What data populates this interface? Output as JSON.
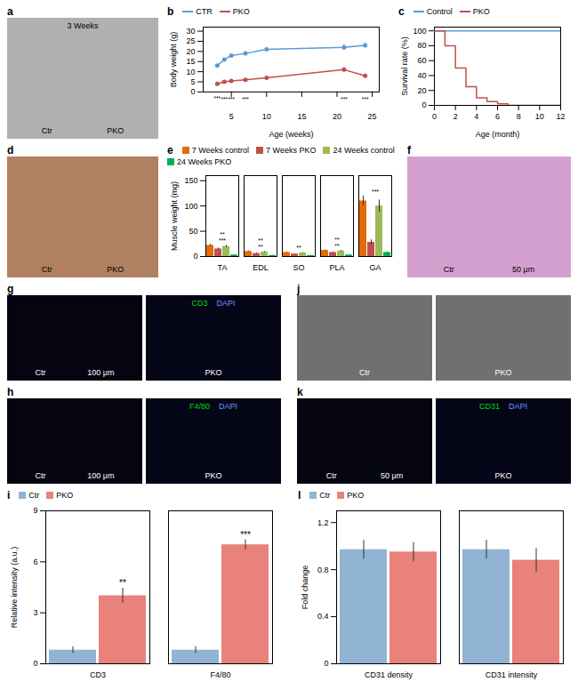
{
  "chart_data": [
    {
      "type": "image",
      "title": "a",
      "color": "#b0b0b0",
      "subtitle": "3 Weeks",
      "annotations": [
        "Ctr",
        "PKO"
      ]
    },
    {
      "type": "line",
      "title": "b",
      "xlabel": "Age (weeks)",
      "ylabel": "Body weight (g)",
      "x": [
        3,
        4,
        5,
        7,
        10,
        21,
        24
      ],
      "series": [
        {
          "name": "CTR",
          "color": "#5b9bd5",
          "marker": "circle",
          "values": [
            13,
            16,
            18,
            19,
            21,
            22,
            23
          ],
          "errors": [
            0.5,
            0.5,
            0.5,
            0.8,
            1.0,
            1.5,
            1.2
          ]
        },
        {
          "name": "PKO",
          "color": "#c0504d",
          "marker": "circle",
          "values": [
            4,
            5,
            5.5,
            6,
            7,
            11,
            8
          ],
          "errors": [
            0.3,
            0.3,
            0.4,
            0.5,
            0.6,
            1.0,
            0.8
          ]
        }
      ],
      "xlim": [
        1,
        26
      ],
      "ylim": [
        0,
        32
      ],
      "xticks": [
        5,
        10,
        15,
        20,
        25
      ],
      "yticks": [
        0,
        5,
        10,
        15,
        20,
        25,
        30
      ],
      "annotations": [
        {
          "x": 3,
          "y": -2.0,
          "text": "***"
        },
        {
          "x": 4,
          "y": -2.8,
          "text": "***"
        },
        {
          "x": 5,
          "y": -2.8,
          "text": "***"
        },
        {
          "x": 7,
          "y": -2.8,
          "text": "***"
        },
        {
          "x": 21,
          "y": -2.8,
          "text": "***"
        },
        {
          "x": 24,
          "y": -2.8,
          "text": "***"
        }
      ]
    },
    {
      "type": "line",
      "title": "c",
      "xlabel": "Age (month)",
      "ylabel": "Survival rate (%)",
      "series": [
        {
          "name": "Control",
          "color": "#5b9bd5",
          "x": [
            0,
            12
          ],
          "values": [
            100,
            100
          ]
        },
        {
          "name": "PKO",
          "color": "#c0504d",
          "line_style": "steps",
          "x": [
            0,
            0,
            1,
            1,
            2,
            2,
            3,
            3,
            4,
            4,
            5,
            5,
            6,
            6,
            7,
            7,
            12
          ],
          "values": [
            100,
            100,
            100,
            80,
            80,
            50,
            50,
            25,
            25,
            10,
            10,
            5,
            5,
            2,
            2,
            0,
            0
          ]
        }
      ],
      "xlim": [
        0,
        12
      ],
      "ylim": [
        0,
        105
      ],
      "xticks": [
        0,
        2,
        4,
        6,
        8,
        10,
        12
      ],
      "yticks": [
        0,
        20,
        40,
        60,
        80,
        100
      ]
    },
    {
      "type": "image",
      "title": "d",
      "color": "#b08060",
      "annotations": [
        "Ctr",
        "PKO"
      ]
    },
    {
      "type": "bar",
      "title": "e",
      "ylabel": "Muscle weight (mg)",
      "categories": [
        "TA",
        "EDL",
        "SO",
        "PLA",
        "GA"
      ],
      "series": [
        {
          "name": "7 Weeks control",
          "color": "#e36c09",
          "values": [
            22,
            10,
            8,
            12,
            110
          ],
          "errors": [
            2,
            1,
            0.8,
            1.2,
            10
          ]
        },
        {
          "name": "7 Weeks PKO",
          "color": "#c0504d",
          "values": [
            15,
            6,
            5,
            8,
            28
          ],
          "errors": [
            2,
            1,
            0.5,
            1,
            5
          ]
        },
        {
          "name": "24 Weeks control",
          "color": "#9bbb59",
          "values": [
            20,
            9,
            7,
            11,
            100
          ],
          "errors": [
            2,
            1,
            0.8,
            1,
            12
          ]
        },
        {
          "name": "24 Weeks PKO",
          "color": "#00b050",
          "values": [
            3,
            2,
            2,
            3,
            8
          ],
          "errors": [
            0.5,
            0.3,
            0.3,
            0.4,
            1
          ]
        }
      ],
      "ylim": [
        0,
        160
      ],
      "yticks": [
        0,
        50,
        100,
        150
      ],
      "annotations": [
        "**\n***",
        "**\n**",
        "**",
        "**\n**",
        "***"
      ]
    },
    {
      "type": "image",
      "title": "f",
      "color": "#d4a0d0",
      "annotations": [
        "Ctr",
        "50 μm"
      ]
    },
    {
      "type": "image",
      "title": "g",
      "color": "#050512",
      "annotations": [
        "Ctr",
        "100 μm"
      ]
    },
    {
      "type": "image",
      "color": "#050518",
      "annotations": [
        "PKO"
      ],
      "series": [
        {
          "name": "CD3",
          "color": "#00dd00"
        },
        {
          "name": "DAPI",
          "color": "#6699ff"
        }
      ]
    },
    {
      "type": "image",
      "title": "j",
      "color": "#707070",
      "annotations": [
        "Ctr"
      ]
    },
    {
      "type": "image",
      "color": "#707070",
      "annotations": [
        "PKO"
      ]
    },
    {
      "type": "image",
      "title": "h",
      "color": "#050512",
      "annotations": [
        "Ctr",
        "100 μm"
      ]
    },
    {
      "type": "image",
      "color": "#050518",
      "annotations": [
        "PKO"
      ],
      "series": [
        {
          "name": "F4/80",
          "color": "#00dd00"
        },
        {
          "name": "DAPI",
          "color": "#6699ff"
        }
      ]
    },
    {
      "type": "image",
      "title": "k",
      "color": "#050512",
      "annotations": [
        "Ctr",
        "50 μm"
      ]
    },
    {
      "type": "image",
      "color": "#050518",
      "annotations": [
        "PKO"
      ],
      "series": [
        {
          "name": "CD31",
          "color": "#00dd00"
        },
        {
          "name": "DAPI",
          "color": "#6699ff"
        }
      ]
    },
    {
      "type": "bar",
      "title": "i",
      "ylabel": "Relative intensity (a.u.)",
      "categories": [
        "CD3",
        "F4/80"
      ],
      "series": [
        {
          "name": "Ctr",
          "color": "#92b4d4",
          "values": [
            0.8,
            0.8
          ],
          "errors": [
            0.2,
            0.2
          ]
        },
        {
          "name": "PKO",
          "color": "#e8827a",
          "values": [
            4.0,
            7.0
          ],
          "errors": [
            0.45,
            0.3
          ],
          "annotations": [
            "**",
            "***"
          ]
        }
      ],
      "ylim": [
        0,
        9
      ],
      "yticks": [
        0,
        3,
        6,
        9
      ]
    },
    {
      "type": "bar",
      "title": "l",
      "ylabel": "Fold change",
      "categories": [
        "CD31 density",
        "CD31 intensity"
      ],
      "series": [
        {
          "name": "Ctr",
          "color": "#92b4d4",
          "values": [
            0.97,
            0.97
          ],
          "errors": [
            0.08,
            0.08
          ]
        },
        {
          "name": "PKO",
          "color": "#e8827a",
          "values": [
            0.95,
            0.88
          ],
          "errors": [
            0.08,
            0.1
          ]
        }
      ],
      "ylim": [
        0,
        1.3
      ],
      "yticks": [
        0,
        0.4,
        0.8,
        1.2
      ]
    }
  ]
}
